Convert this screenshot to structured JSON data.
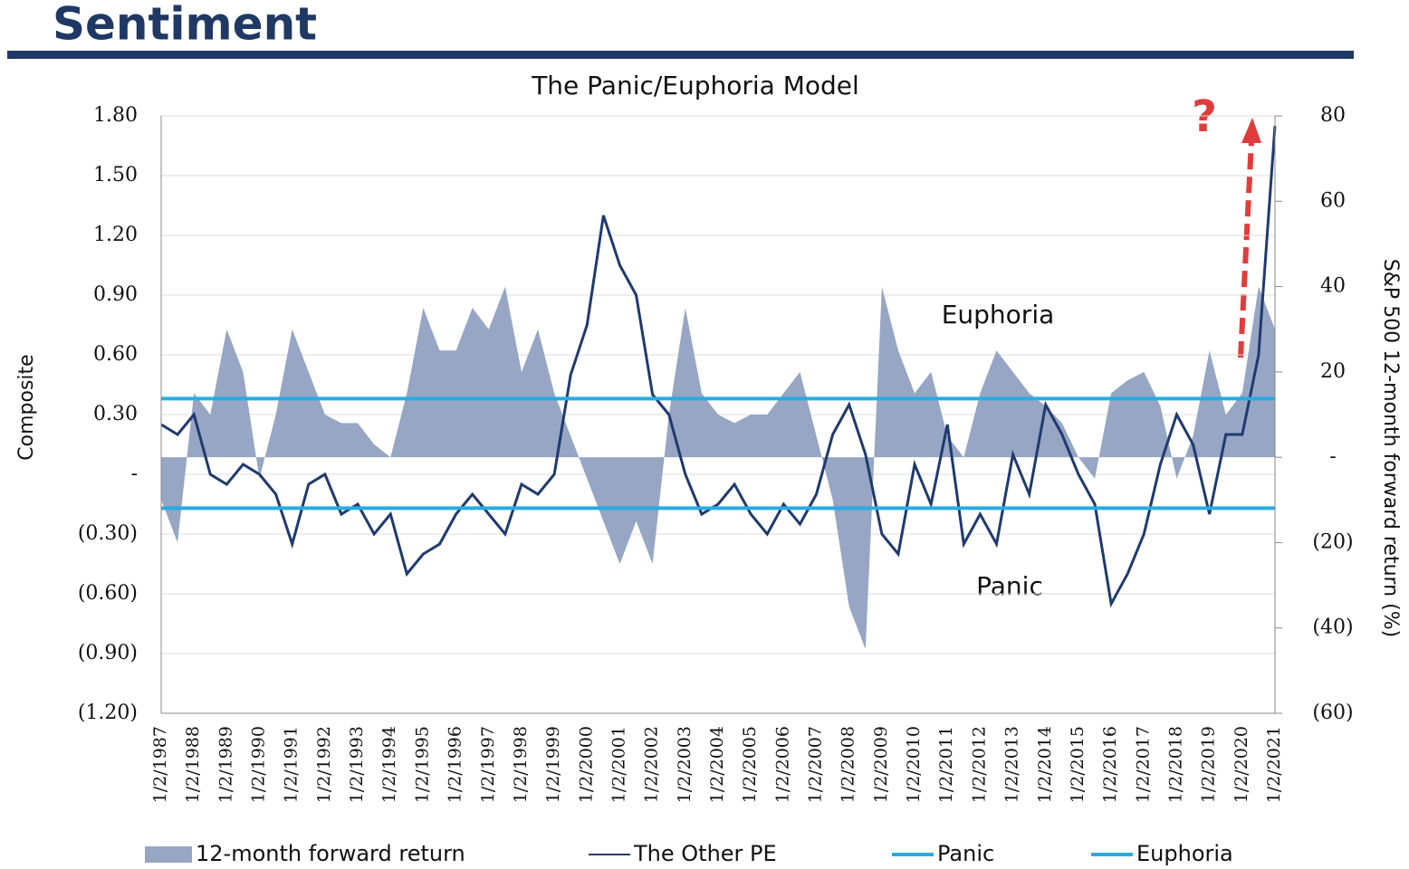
{
  "chart_data": {
    "type": "area-line",
    "header": "Sentiment",
    "title": "The Panic/Euphoria Model",
    "y_label": "Composite",
    "y2_label": "S&P 500 12-month forward return (%)",
    "annotations": [
      "Euphoria",
      "Panic",
      "?"
    ],
    "categories": [
      "1/2/1987",
      null,
      "1/2/1988",
      null,
      "1/2/1989",
      null,
      "1/2/1990",
      null,
      "1/2/1991",
      null,
      "1/2/1992",
      null,
      "1/2/1993",
      null,
      "1/2/1994",
      null,
      "1/2/1995",
      null,
      "1/2/1996",
      null,
      "1/2/1997",
      null,
      "1/2/1998",
      null,
      "1/2/1999",
      null,
      "1/2/2000",
      null,
      "1/2/2001",
      null,
      "1/2/2002",
      null,
      "1/2/2003",
      null,
      "1/2/2004",
      null,
      "1/2/2005",
      null,
      "1/2/2006",
      null,
      "1/2/2007",
      null,
      "1/2/2008",
      null,
      "1/2/2009",
      null,
      "1/2/2010",
      null,
      "1/2/2011",
      null,
      "1/2/2012",
      null,
      "1/2/2013",
      null,
      "1/2/2014",
      null,
      "1/2/2015",
      null,
      "1/2/2016",
      null,
      "1/2/2017",
      null,
      "1/2/2018",
      null,
      "1/2/2019",
      null,
      "1/2/2020",
      null,
      "1/2/2021"
    ],
    "series": [
      {
        "name": "12-month forward return",
        "kind": "area",
        "axis": "y2",
        "color": "#96a6c4",
        "values": [
          -10,
          -20,
          15,
          10,
          30,
          20,
          -5,
          10,
          30,
          20,
          10,
          8,
          8,
          3,
          0,
          15,
          35,
          25,
          25,
          35,
          30,
          40,
          20,
          30,
          15,
          5,
          -5,
          -15,
          -25,
          -15,
          -25,
          10,
          35,
          15,
          10,
          8,
          10,
          10,
          15,
          20,
          5,
          -10,
          -35,
          -45,
          40,
          25,
          15,
          20,
          5,
          0,
          15,
          25,
          20,
          15,
          12,
          8,
          0,
          -5,
          15,
          18,
          20,
          12,
          -5,
          5,
          25,
          10,
          15,
          40,
          30
        ]
      },
      {
        "name": "The Other PE",
        "kind": "line",
        "color": "#1f3a6e",
        "values": [
          0.25,
          0.2,
          0.3,
          0.0,
          -0.05,
          0.05,
          0.0,
          -0.1,
          -0.35,
          -0.05,
          0.0,
          -0.2,
          -0.15,
          -0.3,
          -0.2,
          -0.5,
          -0.4,
          -0.35,
          -0.2,
          -0.1,
          -0.2,
          -0.3,
          -0.05,
          -0.1,
          0.0,
          0.5,
          0.75,
          1.3,
          1.05,
          0.9,
          0.4,
          0.3,
          0.0,
          -0.2,
          -0.15,
          -0.05,
          -0.2,
          -0.3,
          -0.15,
          -0.25,
          -0.1,
          0.2,
          0.35,
          0.1,
          -0.3,
          -0.4,
          0.05,
          -0.15,
          0.25,
          -0.35,
          -0.2,
          -0.35,
          0.1,
          -0.1,
          0.35,
          0.2,
          0.0,
          -0.15,
          -0.65,
          -0.5,
          -0.3,
          0.05,
          0.3,
          0.15,
          -0.2,
          0.2,
          0.2,
          0.6,
          1.75
        ]
      },
      {
        "name": "Panic",
        "kind": "level",
        "color": "#29abe2",
        "value": -0.17
      },
      {
        "name": "Euphoria",
        "kind": "level",
        "color": "#29abe2",
        "value": 0.38
      }
    ],
    "ylim": [
      -1.2,
      1.8
    ],
    "yticks": [
      {
        "value": 1.8,
        "label": "1.80"
      },
      {
        "value": 1.5,
        "label": "1.50"
      },
      {
        "value": 1.2,
        "label": "1.20"
      },
      {
        "value": 0.9,
        "label": "0.90"
      },
      {
        "value": 0.6,
        "label": "0.60"
      },
      {
        "value": 0.3,
        "label": "0.30"
      },
      {
        "value": 0,
        "label": "-"
      },
      {
        "value": -0.3,
        "label": "(0.30)"
      },
      {
        "value": -0.6,
        "label": "(0.60)"
      },
      {
        "value": -0.9,
        "label": "(0.90)"
      },
      {
        "value": -1.2,
        "label": "(1.20)"
      }
    ],
    "y2lim": [
      -60,
      80
    ],
    "y2ticks": [
      80,
      60,
      40,
      20,
      {
        "value": 0,
        "label": "-"
      },
      {
        "value": -20,
        "label": "(20)"
      },
      {
        "value": -40,
        "label": "(40)"
      },
      {
        "value": -60,
        "label": "(60)"
      }
    ],
    "grid": true
  }
}
